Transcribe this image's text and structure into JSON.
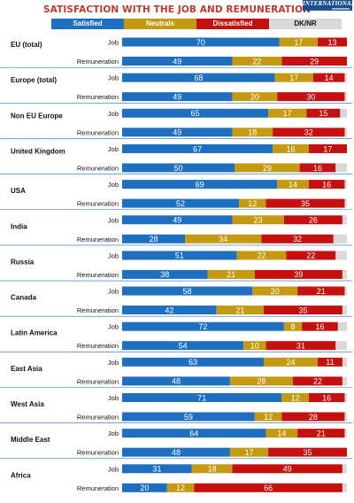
{
  "title": "SATISFACTION WITH THE JOB AND REMUNERATION",
  "logo_text": "INTERNATIONAL",
  "colors": {
    "satisfied": "#1f6fc1",
    "neutrals": "#c49a12",
    "dissatisfied": "#c4100f",
    "dk_nr": "#d9d9d9",
    "title": "#c0392b",
    "separator": "#1f6fc1"
  },
  "legend": [
    {
      "key": "satisfied",
      "label": "Satisfied"
    },
    {
      "key": "neutrals",
      "label": "Neutrals"
    },
    {
      "key": "dissatisfied",
      "label": "Dissatisfied"
    },
    {
      "key": "dk_nr",
      "label": "DK/NR"
    }
  ],
  "chart_data": {
    "type": "bar",
    "orientation": "horizontal",
    "stacked": true,
    "title": "SATISFACTION WITH THE JOB AND REMUNERATION",
    "xlim": [
      0,
      100
    ],
    "series_names": [
      "Satisfied",
      "Neutrals",
      "Dissatisfied",
      "DK/NR"
    ],
    "groups": [
      {
        "region": "EU (total)",
        "rows": [
          {
            "label": "Job",
            "values": [
              70,
              17,
              13,
              0
            ]
          },
          {
            "label": "Remuneration",
            "values": [
              49,
              22,
              29,
              0
            ]
          }
        ]
      },
      {
        "region": "Europe (total)",
        "rows": [
          {
            "label": "Job",
            "values": [
              68,
              17,
              14,
              1
            ]
          },
          {
            "label": "Remuneration",
            "values": [
              49,
              20,
              30,
              1
            ]
          }
        ]
      },
      {
        "region": "Non EU Europe",
        "rows": [
          {
            "label": "Job",
            "values": [
              65,
              17,
              15,
              3
            ]
          },
          {
            "label": "Remuneration",
            "values": [
              49,
              18,
              32,
              1
            ]
          }
        ]
      },
      {
        "region": "United Kingdom",
        "rows": [
          {
            "label": "Job",
            "values": [
              67,
              16,
              17,
              0
            ]
          },
          {
            "label": "Remuneration",
            "values": [
              50,
              29,
              16,
              5
            ]
          }
        ]
      },
      {
        "region": "USA",
        "rows": [
          {
            "label": "Job",
            "values": [
              69,
              14,
              16,
              1
            ]
          },
          {
            "label": "Remuneration",
            "values": [
              52,
              12,
              35,
              1
            ]
          }
        ]
      },
      {
        "region": "India",
        "rows": [
          {
            "label": "Job",
            "values": [
              49,
              23,
              26,
              2
            ]
          },
          {
            "label": "Remuneration",
            "values": [
              28,
              34,
              32,
              6
            ]
          }
        ]
      },
      {
        "region": "Russia",
        "rows": [
          {
            "label": "Job",
            "values": [
              51,
              22,
              22,
              5
            ]
          },
          {
            "label": "Remuneration",
            "values": [
              38,
              21,
              39,
              2
            ]
          }
        ]
      },
      {
        "region": "Canada",
        "rows": [
          {
            "label": "Job",
            "values": [
              58,
              20,
              21,
              1
            ]
          },
          {
            "label": "Remuneration",
            "values": [
              42,
              21,
              35,
              2
            ]
          }
        ]
      },
      {
        "region": "Latin America",
        "rows": [
          {
            "label": "Job",
            "values": [
              72,
              8,
              16,
              4
            ]
          },
          {
            "label": "Remuneration",
            "values": [
              54,
              10,
              31,
              5
            ]
          }
        ]
      },
      {
        "region": "East Asia",
        "rows": [
          {
            "label": "Job",
            "values": [
              63,
              24,
              11,
              2
            ]
          },
          {
            "label": "Remuneration",
            "values": [
              48,
              28,
              22,
              2
            ]
          }
        ]
      },
      {
        "region": "West Asia",
        "rows": [
          {
            "label": "Job",
            "values": [
              71,
              12,
              16,
              1
            ]
          },
          {
            "label": "Remuneration",
            "values": [
              59,
              12,
              28,
              1
            ]
          }
        ]
      },
      {
        "region": "Middle East",
        "rows": [
          {
            "label": "Job",
            "values": [
              64,
              14,
              21,
              1
            ]
          },
          {
            "label": "Remuneration",
            "values": [
              48,
              17,
              35,
              0
            ]
          }
        ]
      },
      {
        "region": "Africa",
        "rows": [
          {
            "label": "Job",
            "values": [
              31,
              18,
              49,
              2
            ]
          },
          {
            "label": "Remuneration",
            "values": [
              20,
              12,
              66,
              2
            ]
          }
        ]
      }
    ]
  }
}
